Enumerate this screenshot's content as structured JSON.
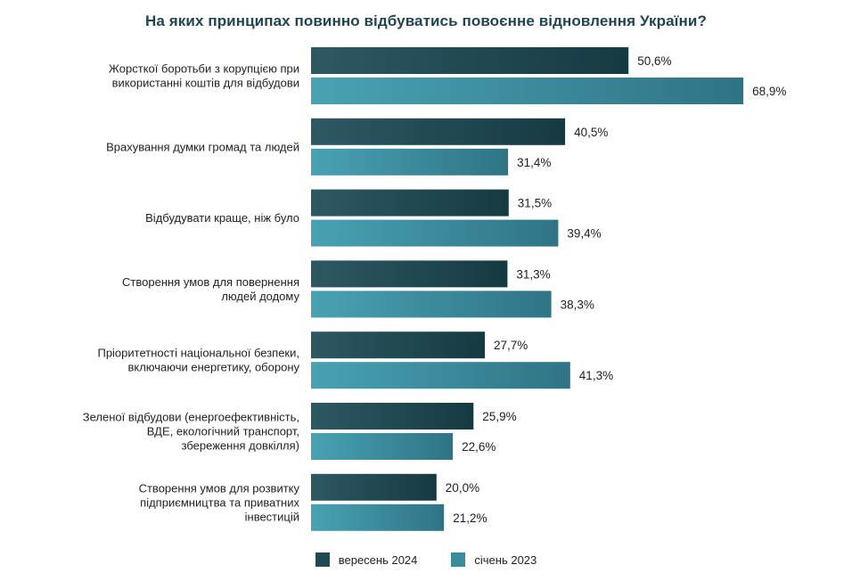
{
  "chart_data": {
    "type": "bar",
    "orientation": "horizontal",
    "title": "На яких принципах повинно відбуватись повоєнне відновлення України?",
    "categories": [
      [
        "Жорсткої боротьби з корупцією при",
        "використанні коштів для відбудови"
      ],
      [
        "Врахування думки громад та людей"
      ],
      [
        "Відбудувати краще, ніж було"
      ],
      [
        "Створення умов для повернення",
        "людей додому"
      ],
      [
        "Пріоритетності національної безпеки,",
        "включаючи енергетику, оборону"
      ],
      [
        "Зеленої відбудови (енергоефективність,",
        "ВДЕ, екологічний транспорт,",
        "збереження довкілля)"
      ],
      [
        "Створення умов для розвитку",
        "підприємництва та приватних",
        "інвестицій"
      ]
    ],
    "series": [
      {
        "name": "вересень 2024",
        "color": "#1f4a52",
        "values": [
          50.6,
          40.5,
          31.5,
          31.3,
          27.7,
          25.9,
          20.0
        ],
        "labels": [
          "50,6%",
          "40,5%",
          "31,5%",
          "31,3%",
          "27,7%",
          "25,9%",
          "20,0%"
        ]
      },
      {
        "name": "січень 2023",
        "color": "#3a8b9c",
        "values": [
          68.9,
          31.4,
          39.4,
          38.3,
          41.3,
          22.6,
          21.2
        ],
        "labels": [
          "68,9%",
          "31,4%",
          "39,4%",
          "38,3%",
          "41,3%",
          "22,6%",
          "21,2%"
        ]
      }
    ],
    "xlim": [
      0,
      100
    ],
    "grid": false,
    "legend_position": "bottom"
  }
}
